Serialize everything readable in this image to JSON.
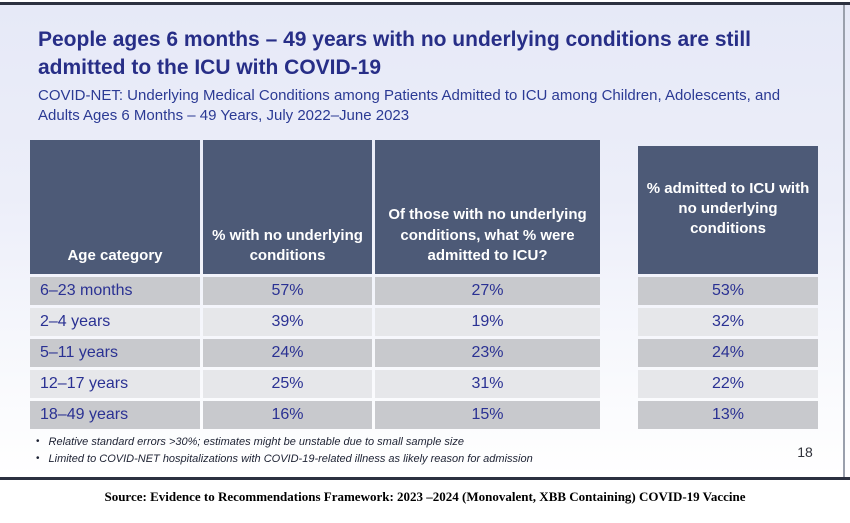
{
  "page": {
    "title": "People ages 6 months – 49 years with no underlying conditions are still admitted to the ICU with COVID-19",
    "subtitle": "COVID-NET: Underlying Medical Conditions among Patients Admitted to ICU among Children, Adolescents, and Adults Ages 6 Months – 49 Years, July 2022–June 2023",
    "page_number": "18",
    "source_line": "Source: Evidence to Recommendations Framework: 2023 –2024 (Monovalent, XBB Containing) COVID-19 Vaccine"
  },
  "tables": {
    "main": {
      "headers": [
        "Age category",
        "% with no underlying conditions",
        "Of those with no underlying conditions, what % were admitted to ICU?"
      ],
      "rows": [
        {
          "age": "6–23 months",
          "pct_no_conditions": "57%",
          "pct_admitted_icu": "27%"
        },
        {
          "age": "2–4 years",
          "pct_no_conditions": "39%",
          "pct_admitted_icu": "19%"
        },
        {
          "age": "5–11 years",
          "pct_no_conditions": "24%",
          "pct_admitted_icu": "23%"
        },
        {
          "age": "12–17 years",
          "pct_no_conditions": "25%",
          "pct_admitted_icu": "31%"
        },
        {
          "age": "18–49 years",
          "pct_no_conditions": "16%",
          "pct_admitted_icu": "15%"
        }
      ]
    },
    "side": {
      "header": "% admitted to ICU with no underlying conditions",
      "values": [
        "53%",
        "32%",
        "24%",
        "22%",
        "13%"
      ]
    }
  },
  "footnotes": {
    "bullet": "•",
    "items": [
      "Relative standard errors >30%; estimates might be unstable due to small sample size",
      "Limited to COVID-NET hospitalizations with COVID-19-related illness as likely reason for admission"
    ]
  },
  "colors": {
    "header_bg": "#4d5a77",
    "row_dark": "#c8c9cd",
    "row_light": "#e6e7ea",
    "title_navy": "#272e87",
    "value_navy": "#2a3193",
    "rule_dark": "#2c3140"
  }
}
